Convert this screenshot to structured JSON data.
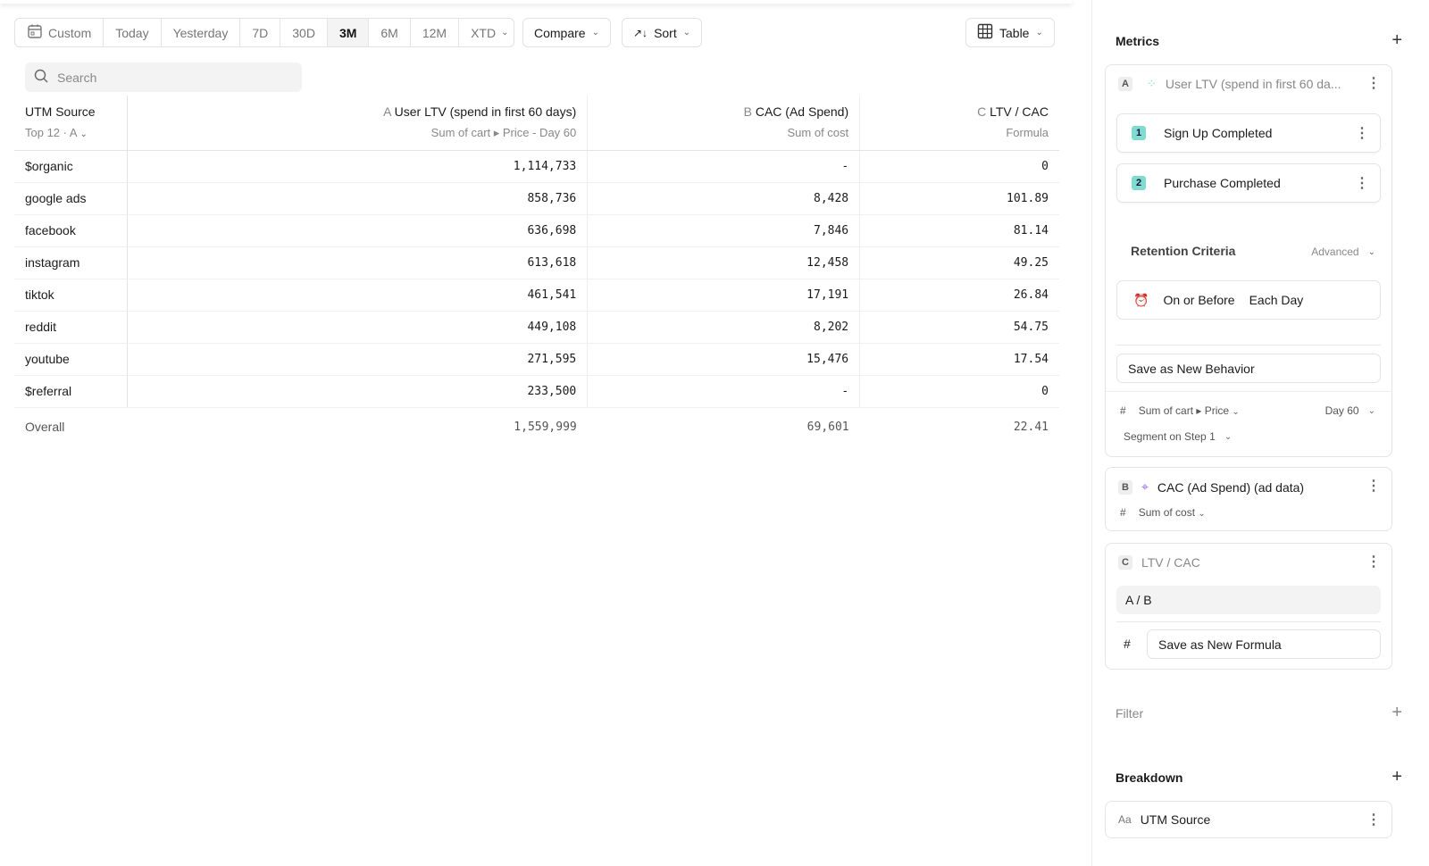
{
  "toolbar": {
    "date_ranges": [
      "Custom",
      "Today",
      "Yesterday",
      "7D",
      "30D",
      "3M",
      "6M",
      "12M",
      "XTD"
    ],
    "active": "3M",
    "compare": "Compare",
    "sort": "Sort",
    "view": "Table"
  },
  "search": {
    "placeholder": "Search"
  },
  "table": {
    "breakdown_header": "UTM Source",
    "breakdown_sub": "Top 12 · A",
    "columns": [
      {
        "letter": "A",
        "title": "User LTV (spend in first 60 days)",
        "sub": "Sum of cart ▸ Price - Day 60"
      },
      {
        "letter": "B",
        "title": "CAC (Ad Spend)",
        "sub": "Sum of cost"
      },
      {
        "letter": "C",
        "title": "LTV / CAC",
        "sub": "Formula"
      }
    ],
    "rows": [
      [
        "$organic",
        "1,114,733",
        "-",
        "0"
      ],
      [
        "google ads",
        "858,736",
        "8,428",
        "101.89"
      ],
      [
        "facebook",
        "636,698",
        "7,846",
        "81.14"
      ],
      [
        "instagram",
        "613,618",
        "12,458",
        "49.25"
      ],
      [
        "tiktok",
        "461,541",
        "17,191",
        "26.84"
      ],
      [
        "reddit",
        "449,108",
        "8,202",
        "54.75"
      ],
      [
        "youtube",
        "271,595",
        "15,476",
        "17.54"
      ],
      [
        "$referral",
        "233,500",
        "-",
        "0"
      ]
    ],
    "overall": [
      "Overall",
      "1,559,999",
      "69,601",
      "22.41"
    ]
  },
  "sidebar": {
    "metrics_title": "Metrics",
    "a": {
      "letter": "A",
      "title": "User LTV (spend in first 60 da...",
      "steps": [
        {
          "num": "1",
          "label": "Sign Up Completed"
        },
        {
          "num": "2",
          "label": "Purchase Completed"
        }
      ],
      "retention_label": "Retention Criteria",
      "advanced": "Advanced",
      "on_or_before": "On or Before",
      "each_day": "Each Day",
      "save_behavior": "Save as New Behavior",
      "measure": "Sum of cart ▸ Price",
      "day": "Day 60",
      "segment": "Segment on Step 1"
    },
    "b": {
      "letter": "B",
      "title": "CAC (Ad Spend) (ad data)",
      "measure": "Sum of cost"
    },
    "c": {
      "letter": "C",
      "title": "LTV / CAC",
      "formula": "A / B",
      "save_formula": "Save as New Formula"
    },
    "filter_title": "Filter",
    "breakdown_title": "Breakdown",
    "breakdown_item_prefix": "Aa",
    "breakdown_item": "UTM Source"
  }
}
